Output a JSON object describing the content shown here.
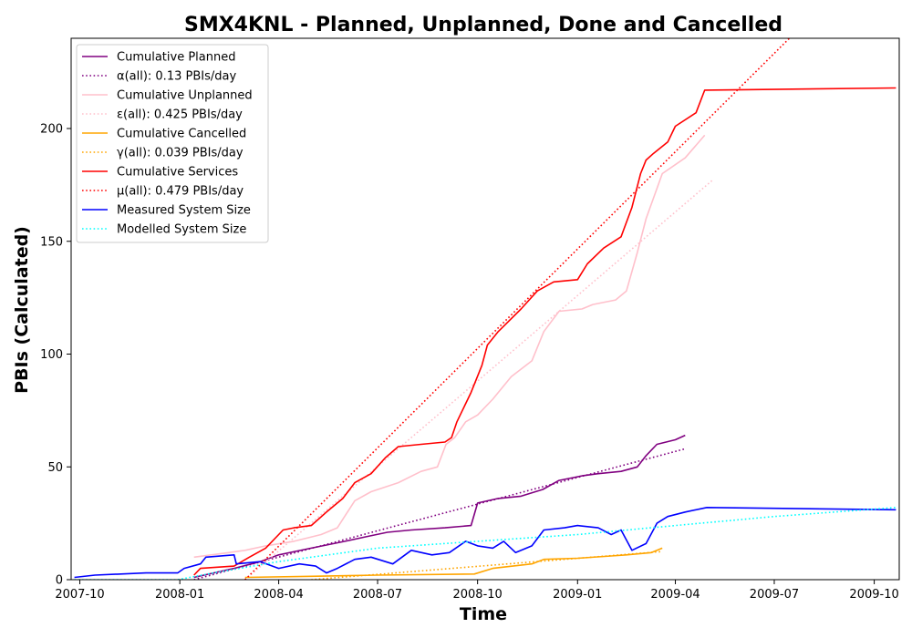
{
  "chart_data": {
    "type": "line",
    "title": "SMX4KNL - Planned, Unplanned, Done  and Cancelled",
    "xlabel": "Time",
    "ylabel": "PBIs (Calculated)",
    "xlim": [
      "2007-09-23",
      "2009-10-24"
    ],
    "ylim": [
      0,
      240
    ],
    "x_ticks": [
      "2007-10-01",
      "2008-01-01",
      "2008-04-01",
      "2008-07-01",
      "2008-10-01",
      "2009-01-01",
      "2009-04-01",
      "2009-07-01",
      "2009-10-01"
    ],
    "x_tick_labels": [
      "2007-10",
      "2008-01",
      "2008-04",
      "2008-07",
      "2008-10",
      "2009-01",
      "2009-04",
      "2009-07",
      "2009-10"
    ],
    "y_ticks": [
      0,
      50,
      100,
      150,
      200
    ],
    "legend_position": "upper-left",
    "grid": false,
    "series": [
      {
        "name": "Cumulative Planned",
        "color": "#800080",
        "style": "solid",
        "points": [
          [
            "2008-01-14",
            1
          ],
          [
            "2008-02-20",
            5
          ],
          [
            "2008-03-15",
            8
          ],
          [
            "2008-04-01",
            11
          ],
          [
            "2008-05-01",
            14
          ],
          [
            "2008-06-01",
            17
          ],
          [
            "2008-06-20",
            19
          ],
          [
            "2008-07-10",
            21
          ],
          [
            "2008-08-01",
            22
          ],
          [
            "2008-09-01",
            23
          ],
          [
            "2008-09-25",
            24
          ],
          [
            "2008-10-01",
            34
          ],
          [
            "2008-10-20",
            36
          ],
          [
            "2008-11-10",
            37
          ],
          [
            "2008-11-30",
            40
          ],
          [
            "2008-12-15",
            44
          ],
          [
            "2009-01-05",
            46
          ],
          [
            "2009-01-20",
            47
          ],
          [
            "2009-02-10",
            48
          ],
          [
            "2009-02-25",
            50
          ],
          [
            "2009-03-05",
            55
          ],
          [
            "2009-03-15",
            60
          ],
          [
            "2009-04-01",
            62
          ],
          [
            "2009-04-10",
            64
          ]
        ]
      },
      {
        "name": "α(all): 0.13 PBIs/day",
        "color": "#800080",
        "style": "dotted",
        "points": [
          [
            "2008-01-14",
            0
          ],
          [
            "2009-04-10",
            58
          ]
        ]
      },
      {
        "name": "Cumulative Unplanned",
        "color": "#ffc0cb",
        "style": "solid",
        "points": [
          [
            "2008-01-14",
            10
          ],
          [
            "2008-02-15",
            12
          ],
          [
            "2008-03-01",
            13
          ],
          [
            "2008-03-20",
            15
          ],
          [
            "2008-04-15",
            17
          ],
          [
            "2008-05-10",
            20
          ],
          [
            "2008-05-25",
            23
          ],
          [
            "2008-06-10",
            35
          ],
          [
            "2008-06-25",
            39
          ],
          [
            "2008-07-20",
            43
          ],
          [
            "2008-08-10",
            48
          ],
          [
            "2008-08-25",
            50
          ],
          [
            "2008-09-02",
            60
          ],
          [
            "2008-09-10",
            63
          ],
          [
            "2008-09-20",
            70
          ],
          [
            "2008-10-01",
            73
          ],
          [
            "2008-10-15",
            80
          ],
          [
            "2008-11-01",
            90
          ],
          [
            "2008-11-20",
            97
          ],
          [
            "2008-12-01",
            110
          ],
          [
            "2008-12-15",
            119
          ],
          [
            "2009-01-05",
            120
          ],
          [
            "2009-01-15",
            122
          ],
          [
            "2009-02-05",
            124
          ],
          [
            "2009-02-15",
            128
          ],
          [
            "2009-02-25",
            145
          ],
          [
            "2009-03-05",
            160
          ],
          [
            "2009-03-20",
            180
          ],
          [
            "2009-04-10",
            187
          ],
          [
            "2009-04-28",
            197
          ]
        ]
      },
      {
        "name": "ε(all): 0.425 PBIs/day",
        "color": "#ffc0cb",
        "style": "dotted",
        "points": [
          [
            "2008-03-01",
            0
          ],
          [
            "2009-05-05",
            177
          ]
        ]
      },
      {
        "name": "Cumulative Cancelled",
        "color": "#ffa500",
        "style": "solid",
        "points": [
          [
            "2008-03-01",
            1
          ],
          [
            "2008-05-01",
            1.5
          ],
          [
            "2008-07-01",
            2
          ],
          [
            "2008-09-28",
            2.5
          ],
          [
            "2008-10-15",
            5
          ],
          [
            "2008-11-20",
            7
          ],
          [
            "2008-12-01",
            9
          ],
          [
            "2009-01-01",
            9.5
          ],
          [
            "2009-02-01",
            10.5
          ],
          [
            "2009-02-15",
            11
          ],
          [
            "2009-03-10",
            12
          ],
          [
            "2009-03-20",
            14
          ]
        ]
      },
      {
        "name": "γ(all): 0.039 PBIs/day",
        "color": "#ffa500",
        "style": "dotted",
        "points": [
          [
            "2008-05-01",
            0
          ],
          [
            "2009-03-20",
            12.5
          ]
        ]
      },
      {
        "name": "Cumulative Services",
        "color": "#ff0000",
        "style": "solid",
        "points": [
          [
            "2008-01-14",
            2
          ],
          [
            "2008-01-20",
            5
          ],
          [
            "2008-02-20",
            6
          ],
          [
            "2008-03-05",
            10
          ],
          [
            "2008-03-20",
            14
          ],
          [
            "2008-04-05",
            22
          ],
          [
            "2008-04-15",
            23
          ],
          [
            "2008-05-01",
            24
          ],
          [
            "2008-05-15",
            30
          ],
          [
            "2008-05-30",
            36
          ],
          [
            "2008-06-10",
            43
          ],
          [
            "2008-06-25",
            47
          ],
          [
            "2008-07-08",
            54
          ],
          [
            "2008-07-20",
            59
          ],
          [
            "2008-08-10",
            60
          ],
          [
            "2008-09-01",
            61
          ],
          [
            "2008-09-07",
            63
          ],
          [
            "2008-09-12",
            70
          ],
          [
            "2008-09-25",
            83
          ],
          [
            "2008-10-05",
            95
          ],
          [
            "2008-10-10",
            104
          ],
          [
            "2008-10-20",
            110
          ],
          [
            "2008-11-10",
            120
          ],
          [
            "2008-11-25",
            128
          ],
          [
            "2008-12-10",
            132
          ],
          [
            "2009-01-01",
            133
          ],
          [
            "2009-01-10",
            140
          ],
          [
            "2009-01-25",
            147
          ],
          [
            "2009-02-10",
            152
          ],
          [
            "2009-02-20",
            165
          ],
          [
            "2009-02-28",
            180
          ],
          [
            "2009-03-05",
            186
          ],
          [
            "2009-03-12",
            189
          ],
          [
            "2009-03-25",
            194
          ],
          [
            "2009-04-01",
            201
          ],
          [
            "2009-04-20",
            207
          ],
          [
            "2009-04-28",
            217
          ],
          [
            "2009-10-21",
            218
          ]
        ]
      },
      {
        "name": "μ(all): 0.479 PBIs/day",
        "color": "#ff0000",
        "style": "dotted",
        "points": [
          [
            "2008-03-01",
            0
          ],
          [
            "2009-07-15",
            240
          ]
        ]
      },
      {
        "name": "Measured System Size",
        "color": "#0000ff",
        "style": "solid",
        "points": [
          [
            "2007-09-26",
            1
          ],
          [
            "2007-10-15",
            2
          ],
          [
            "2007-12-01",
            3
          ],
          [
            "2007-12-30",
            3
          ],
          [
            "2008-01-05",
            5
          ],
          [
            "2008-01-20",
            7
          ],
          [
            "2008-01-25",
            10
          ],
          [
            "2008-02-20",
            11
          ],
          [
            "2008-02-22",
            7
          ],
          [
            "2008-03-15",
            8
          ],
          [
            "2008-04-01",
            5
          ],
          [
            "2008-04-20",
            7
          ],
          [
            "2008-05-05",
            6
          ],
          [
            "2008-05-15",
            3
          ],
          [
            "2008-05-25",
            5
          ],
          [
            "2008-06-10",
            9
          ],
          [
            "2008-06-25",
            10
          ],
          [
            "2008-07-15",
            7
          ],
          [
            "2008-08-01",
            13
          ],
          [
            "2008-08-20",
            11
          ],
          [
            "2008-09-05",
            12
          ],
          [
            "2008-09-20",
            17
          ],
          [
            "2008-10-01",
            15
          ],
          [
            "2008-10-15",
            14
          ],
          [
            "2008-10-25",
            17
          ],
          [
            "2008-11-05",
            12
          ],
          [
            "2008-11-20",
            15
          ],
          [
            "2008-12-01",
            22
          ],
          [
            "2008-12-20",
            23
          ],
          [
            "2009-01-01",
            24
          ],
          [
            "2009-01-20",
            23
          ],
          [
            "2009-02-01",
            20
          ],
          [
            "2009-02-10",
            22
          ],
          [
            "2009-02-20",
            13
          ],
          [
            "2009-03-05",
            16
          ],
          [
            "2009-03-15",
            25
          ],
          [
            "2009-03-25",
            28
          ],
          [
            "2009-04-10",
            30
          ],
          [
            "2009-04-30",
            32
          ],
          [
            "2009-10-21",
            31
          ]
        ]
      },
      {
        "name": "Modelled System Size",
        "color": "#00ffff",
        "style": "dotted",
        "points": [
          [
            "2007-09-26",
            0
          ],
          [
            "2007-12-30",
            0
          ],
          [
            "2008-02-01",
            3
          ],
          [
            "2008-04-01",
            8
          ],
          [
            "2008-07-01",
            14
          ],
          [
            "2008-10-01",
            17
          ],
          [
            "2009-01-01",
            20
          ],
          [
            "2009-04-01",
            24
          ],
          [
            "2009-07-01",
            28
          ],
          [
            "2009-10-21",
            32
          ]
        ]
      }
    ]
  }
}
